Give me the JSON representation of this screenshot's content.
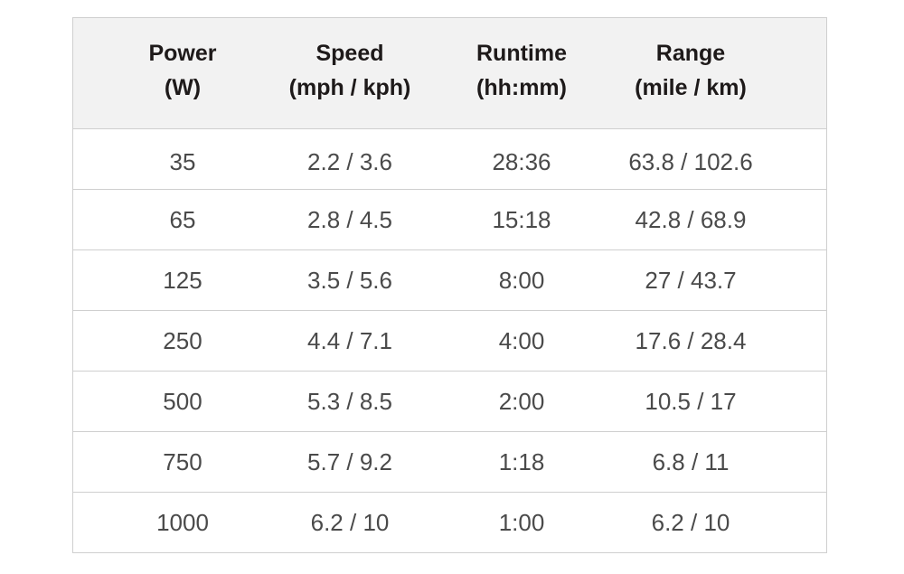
{
  "table": {
    "header": [
      [
        "Power",
        "(W)"
      ],
      [
        "Speed",
        "(mph / kph)"
      ],
      [
        "Runtime",
        "(hh:mm)"
      ],
      [
        "Range",
        "(mile / km)"
      ]
    ],
    "rows": [
      [
        "35",
        "2.2 / 3.6",
        "28:36",
        "63.8 / 102.6"
      ],
      [
        "65",
        "2.8 / 4.5",
        "15:18",
        "42.8 / 68.9"
      ],
      [
        "125",
        "3.5 / 5.6",
        "8:00",
        "27 / 43.7"
      ],
      [
        "250",
        "4.4 / 7.1",
        "4:00",
        "17.6 / 28.4"
      ],
      [
        "500",
        "5.3 / 8.5",
        "2:00",
        "10.5 / 17"
      ],
      [
        "750",
        "5.7 / 9.2",
        "1:18",
        "6.8 / 11"
      ],
      [
        "1000",
        "6.2 / 10",
        "1:00",
        "6.2 / 10"
      ]
    ]
  }
}
